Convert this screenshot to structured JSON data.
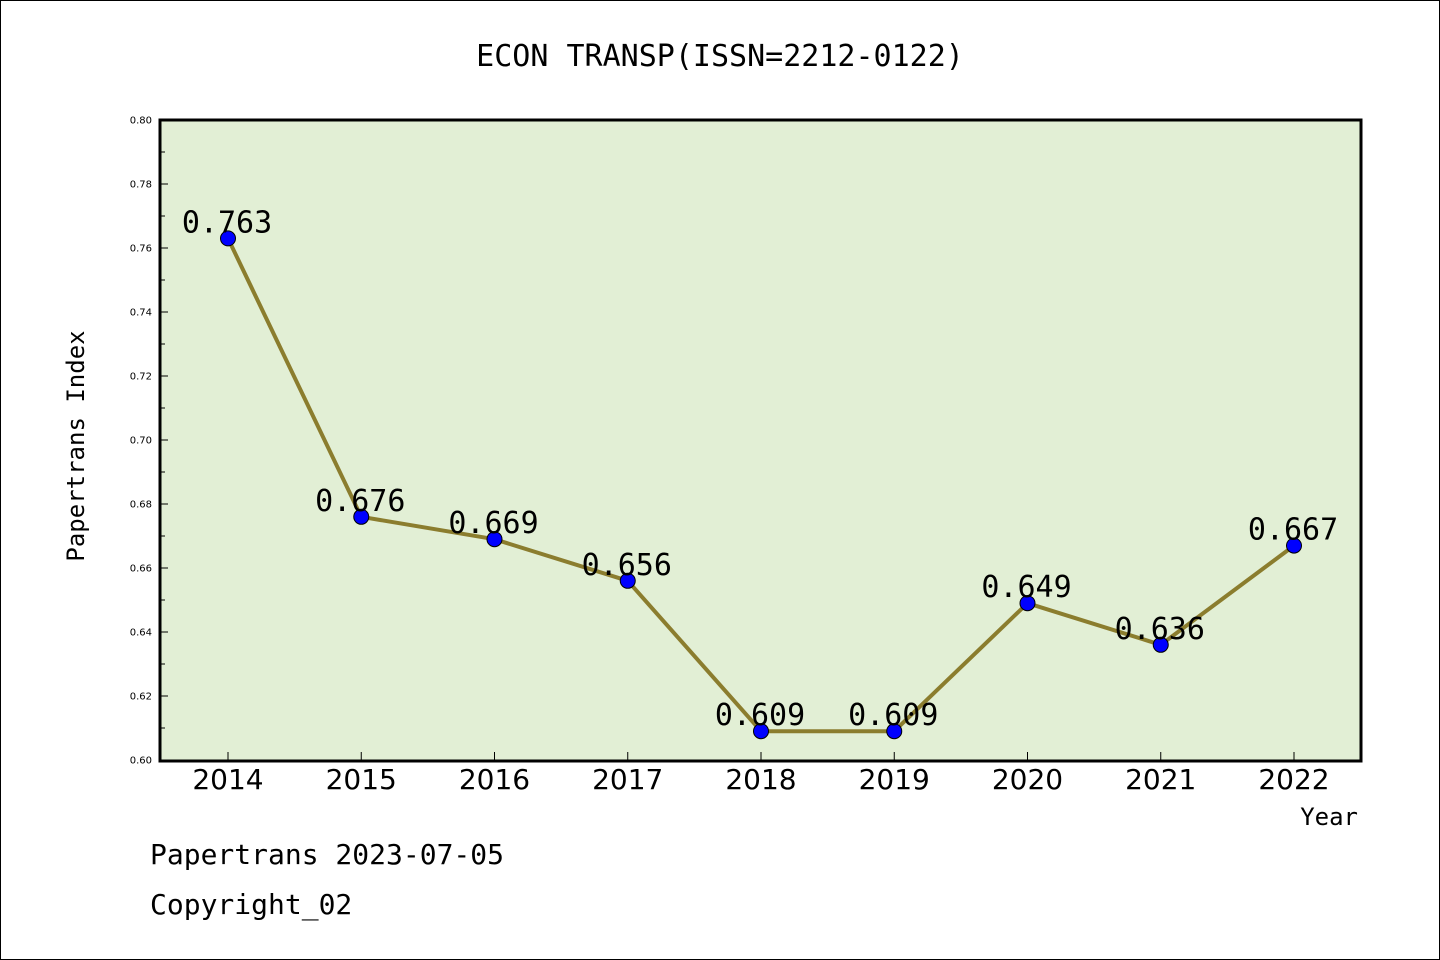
{
  "chart_data": {
    "type": "line",
    "title": "ECON TRANSP(ISSN=2212-0122)",
    "xlabel": "Year",
    "ylabel": "Papertrans Index",
    "categories": [
      "2014",
      "2015",
      "2016",
      "2017",
      "2018",
      "2019",
      "2020",
      "2021",
      "2022"
    ],
    "values": [
      0.763,
      0.676,
      0.669,
      0.656,
      0.609,
      0.609,
      0.649,
      0.636,
      0.667
    ],
    "data_labels": [
      "0.763",
      "0.676",
      "0.669",
      "0.656",
      "0.609",
      "0.609",
      "0.649",
      "0.636",
      "0.667"
    ],
    "ylim": [
      0.6,
      0.8
    ],
    "yticks": [
      "0.60",
      "0.62",
      "0.64",
      "0.66",
      "0.68",
      "0.70",
      "0.72",
      "0.74",
      "0.76",
      "0.78",
      "0.80"
    ],
    "grid": false,
    "legend": "none",
    "colors": {
      "line": "#8B7D2E",
      "marker": "#0000FF",
      "plot_background": "#E2EFD5"
    }
  },
  "footer": {
    "line1": "Papertrans 2023-07-05",
    "line2": "Copyright_02"
  }
}
